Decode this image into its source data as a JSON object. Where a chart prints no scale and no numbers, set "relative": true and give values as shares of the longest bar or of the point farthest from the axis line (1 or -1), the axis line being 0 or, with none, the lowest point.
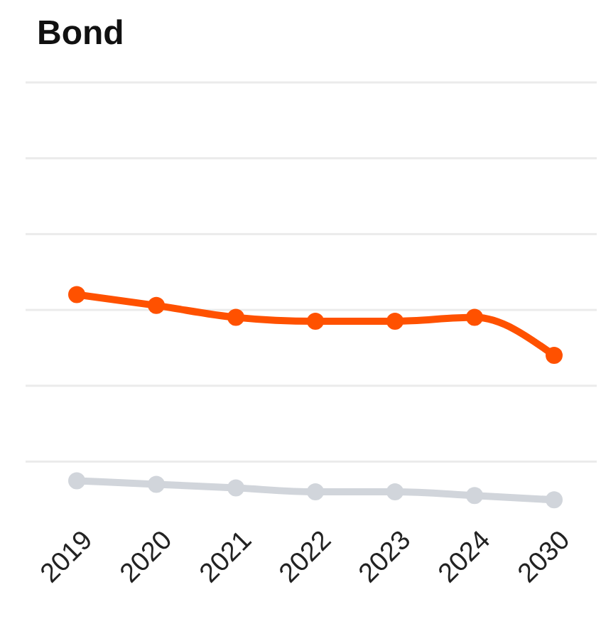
{
  "chart_data": {
    "type": "line",
    "title": "Bond",
    "relative": true,
    "categories": [
      "2019",
      "2020",
      "2021",
      "2022",
      "2023",
      "2024",
      "2030"
    ],
    "series": [
      {
        "color": "#ff5100",
        "values": [
          1,
          0.947,
          0.889,
          0.87,
          0.87,
          0.889,
          0.704
        ]
      },
      {
        "color": "#d1d5db",
        "values": [
          0.093,
          0.076,
          0.058,
          0.039,
          0.039,
          0.021,
          0
        ]
      }
    ],
    "marker": "circle"
  }
}
